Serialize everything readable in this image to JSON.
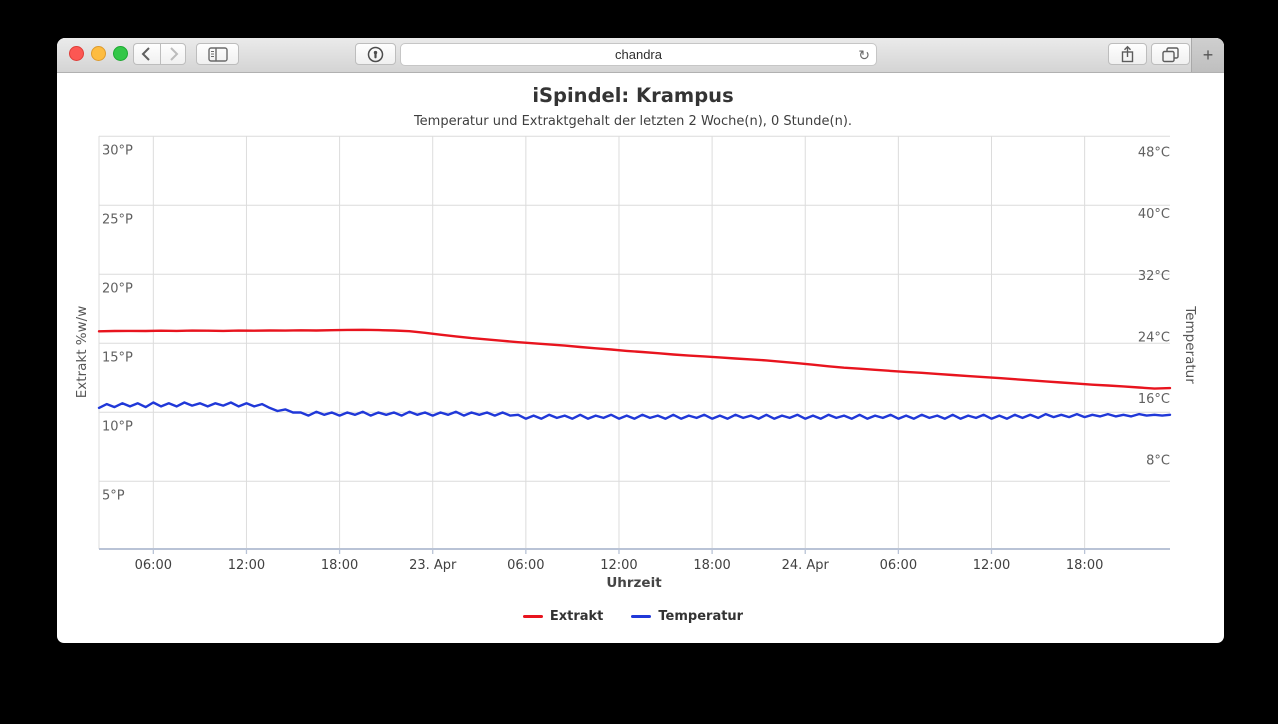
{
  "browser": {
    "url_field": {
      "value": "chandra"
    },
    "new_tab_label": "+",
    "icons": [
      "close-icon",
      "minimize-icon",
      "zoom-icon",
      "chevron-left-icon",
      "chevron-right-icon",
      "sidebar-icon",
      "onepassword-icon",
      "reload-icon",
      "share-icon",
      "tab-overview-icon",
      "plus-icon"
    ]
  },
  "header": {
    "title": "iSpindel: Krampus",
    "subtitle": "Temperatur und Extraktgehalt der letzten 2 Woche(n), 0 Stunde(n)."
  },
  "chart_data": {
    "type": "line",
    "title": "iSpindel: Krampus",
    "subtitle": "Temperatur und Extraktgehalt der letzten 2 Woche(n), 0 Stunde(n).",
    "xlabel": "Uhrzeit",
    "grid": true,
    "legend_position": "bottom",
    "x_ticks": {
      "labels": [
        "06:00",
        "12:00",
        "18:00",
        "23. Apr",
        "06:00",
        "12:00",
        "18:00",
        "24. Apr",
        "06:00",
        "12:00",
        "18:00"
      ],
      "hours": [
        3.5,
        9.5,
        15.5,
        21.5,
        27.5,
        33.5,
        39.5,
        45.5,
        51.5,
        57.5,
        63.5
      ]
    },
    "time_span_hours": 69,
    "y_left": {
      "title": "Extrakt %w/w",
      "tick_labels": [
        "30°P",
        "25°P",
        "20°P",
        "15°P",
        "10°P",
        "5°P"
      ],
      "tick_values": [
        30,
        25,
        20,
        15,
        10,
        5
      ],
      "range": [
        0,
        30
      ]
    },
    "y_right": {
      "title": "Temperatur",
      "tick_labels": [
        "48°C",
        "40°C",
        "32°C",
        "24°C",
        "16°C",
        "8°C"
      ],
      "tick_values": [
        48,
        40,
        32,
        24,
        16,
        8
      ]
    },
    "legend": [
      {
        "label": "Extrakt",
        "color": "#e8141e"
      },
      {
        "label": "Temperatur",
        "color": "#2038d8"
      }
    ],
    "series": [
      {
        "name": "Extrakt",
        "unit": "°P",
        "color": "#e8141e",
        "axis": "left",
        "start_hour": 0,
        "step_hours": 1,
        "values": [
          15.87,
          15.89,
          15.9,
          15.89,
          15.91,
          15.9,
          15.92,
          15.91,
          15.9,
          15.92,
          15.91,
          15.93,
          15.92,
          15.94,
          15.93,
          15.95,
          15.97,
          15.98,
          15.96,
          15.93,
          15.88,
          15.76,
          15.62,
          15.5,
          15.38,
          15.28,
          15.18,
          15.08,
          15.0,
          14.92,
          14.83,
          14.73,
          14.64,
          14.55,
          14.45,
          14.37,
          14.28,
          14.19,
          14.11,
          14.05,
          13.98,
          13.9,
          13.83,
          13.76,
          13.66,
          13.56,
          13.45,
          13.33,
          13.23,
          13.16,
          13.08,
          13.0,
          12.93,
          12.86,
          12.78,
          12.7,
          12.62,
          12.55,
          12.48,
          12.4,
          12.32,
          12.24,
          12.16,
          12.08,
          12.0,
          11.94,
          11.88,
          11.8,
          11.72,
          11.75
        ]
      },
      {
        "name": "Temperatur",
        "unit": "°C",
        "color": "#2038d8",
        "axis": "right",
        "start_hour": 0,
        "step_hours": 0.5,
        "values": [
          14.0,
          14.5,
          14.1,
          14.6,
          14.2,
          14.6,
          14.1,
          14.7,
          14.2,
          14.6,
          14.2,
          14.7,
          14.3,
          14.6,
          14.2,
          14.6,
          14.3,
          14.7,
          14.2,
          14.6,
          14.2,
          14.5,
          14.0,
          13.6,
          13.8,
          13.4,
          13.4,
          13.0,
          13.5,
          13.1,
          13.4,
          13.0,
          13.4,
          13.1,
          13.5,
          13.0,
          13.4,
          13.1,
          13.4,
          13.0,
          13.5,
          13.1,
          13.4,
          13.0,
          13.4,
          13.1,
          13.5,
          13.0,
          13.4,
          13.1,
          13.4,
          13.0,
          13.4,
          13.0,
          13.1,
          12.6,
          13.0,
          12.6,
          13.1,
          12.7,
          13.0,
          12.6,
          13.1,
          12.6,
          13.0,
          12.7,
          13.1,
          12.6,
          13.0,
          12.6,
          13.1,
          12.7,
          13.0,
          12.6,
          13.1,
          12.6,
          13.0,
          12.7,
          13.1,
          12.6,
          13.0,
          12.6,
          13.1,
          12.7,
          13.0,
          12.6,
          13.1,
          12.6,
          13.0,
          12.7,
          13.1,
          12.6,
          13.0,
          12.6,
          13.1,
          12.7,
          13.0,
          12.6,
          13.1,
          12.6,
          13.0,
          12.7,
          13.1,
          12.6,
          13.0,
          12.6,
          13.1,
          12.7,
          13.0,
          12.6,
          13.1,
          12.6,
          13.0,
          12.7,
          13.1,
          12.6,
          13.0,
          12.6,
          13.1,
          12.7,
          13.1,
          12.7,
          13.2,
          12.8,
          13.1,
          12.8,
          13.2,
          12.8,
          13.1,
          12.9,
          13.2,
          12.9,
          13.1,
          12.9,
          13.2,
          13.0,
          13.1,
          13.0,
          13.1
        ]
      }
    ]
  },
  "chart_colors": {
    "grid": "#dcdcdc",
    "axis_line": "#b9c3d6",
    "tick_label": "#606060",
    "x_tick_label": "#414141",
    "axis_title": "#565656"
  }
}
